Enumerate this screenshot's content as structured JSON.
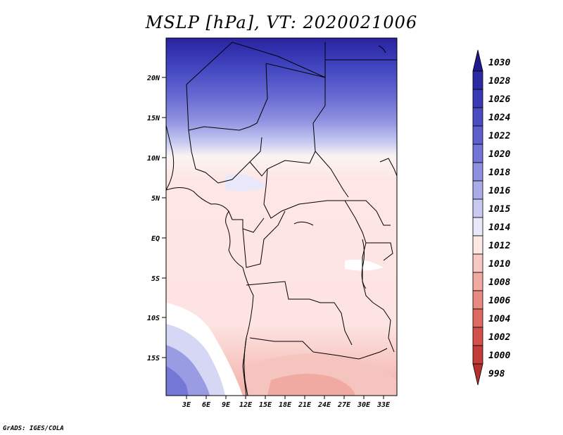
{
  "title": "MSLP [hPa], VT: 2020021006",
  "credit": "GrADS: IGES/COLA",
  "lat_ticks": [
    "20N",
    "15N",
    "10N",
    "5N",
    "EQ",
    "5S",
    "10S",
    "15S"
  ],
  "lon_ticks": [
    "3E",
    "6E",
    "9E",
    "12E",
    "15E",
    "18E",
    "21E",
    "24E",
    "27E",
    "30E",
    "33E"
  ],
  "colorbar": {
    "levels": [
      "1030",
      "1028",
      "1026",
      "1024",
      "1022",
      "1020",
      "1018",
      "1016",
      "1015",
      "1014",
      "1012",
      "1010",
      "1008",
      "1006",
      "1004",
      "1002",
      "1000",
      "998"
    ],
    "colors": [
      "#1e1a8c",
      "#2b2aa3",
      "#3a3ab5",
      "#4a4cc2",
      "#5d5fcc",
      "#7375d6",
      "#8e90df",
      "#aaacea",
      "#c8caf2",
      "#e7e8fa",
      "#fde8e6",
      "#f8c9c4",
      "#f0aaa2",
      "#e88a82",
      "#de6a62",
      "#d4504a",
      "#c43c37",
      "#b3302c"
    ]
  },
  "map": {
    "variable": "MSLP",
    "units": "hPa",
    "valid_time": "2020021006"
  }
}
